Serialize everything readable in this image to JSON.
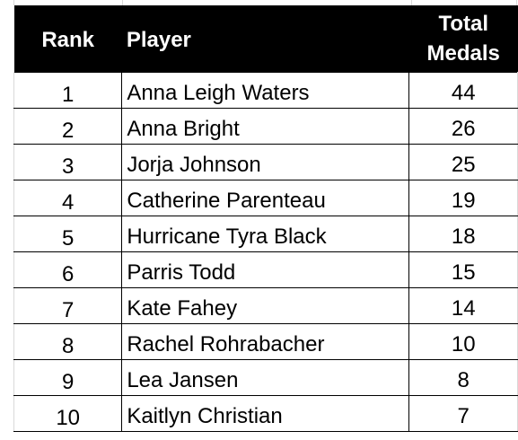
{
  "table": {
    "headers": {
      "rank": "Rank",
      "player": "Player",
      "medals_line1": "Total",
      "medals_line2": "Medals"
    },
    "rows": [
      {
        "rank": "1",
        "player": "Anna Leigh Waters",
        "medals": "44"
      },
      {
        "rank": "2",
        "player": "Anna Bright",
        "medals": "26"
      },
      {
        "rank": "3",
        "player": "Jorja Johnson",
        "medals": "25"
      },
      {
        "rank": "4",
        "player": "Catherine Parenteau",
        "medals": "19"
      },
      {
        "rank": "5",
        "player": "Hurricane Tyra Black",
        "medals": "18"
      },
      {
        "rank": "6",
        "player": "Parris Todd",
        "medals": "15"
      },
      {
        "rank": "7",
        "player": "Kate Fahey",
        "medals": "14"
      },
      {
        "rank": "8",
        "player": "Rachel Rohrabacher",
        "medals": "10"
      },
      {
        "rank": "9",
        "player": "Lea Jansen",
        "medals": "8"
      },
      {
        "rank": "10",
        "player": "Kaitlyn Christian",
        "medals": "7"
      }
    ]
  },
  "colors": {
    "header_bg": "#000000",
    "header_text": "#ffffff",
    "cell_border": "#000000",
    "gridline": "#d9d9d9"
  }
}
